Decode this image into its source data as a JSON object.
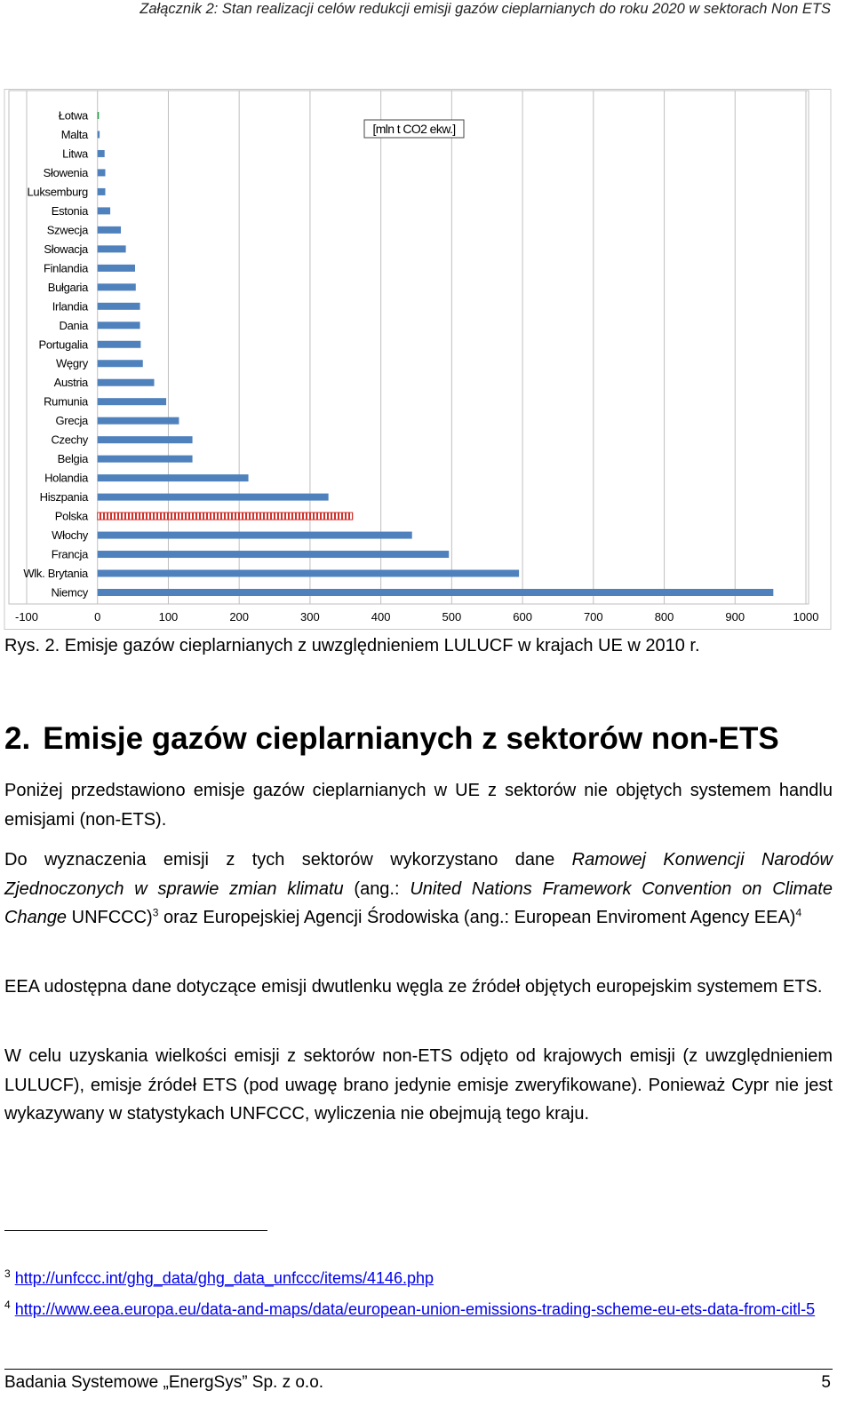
{
  "header": "Załącznik 2: Stan realizacji celów redukcji emisji gazów cieplarnianych do roku 2020 w sektorach Non ETS",
  "chart_data": {
    "type": "bar",
    "orientation": "horizontal",
    "annotation": "[mln t CO2 ekw.]",
    "categories": [
      "Łotwa",
      "Malta",
      "Litwa",
      "Słowenia",
      "Luksemburg",
      "Estonia",
      "Szwecja",
      "Słowacja",
      "Finlandia",
      "Bułgaria",
      "Irlandia",
      "Dania",
      "Portugalia",
      "Węgry",
      "Austria",
      "Rumunia",
      "Grecja",
      "Czechy",
      "Belgia",
      "Holandia",
      "Hiszpania",
      "Polska",
      "Włochy",
      "Francja",
      "Wlk. Brytania",
      "Niemcy"
    ],
    "values": [
      2,
      3,
      10,
      11,
      11,
      18,
      33,
      40,
      53,
      54,
      60,
      60,
      61,
      64,
      80,
      97,
      115,
      134,
      134,
      213,
      326,
      360,
      444,
      496,
      595,
      954
    ],
    "colors": [
      "#2e9b4b",
      "#4f81bd",
      "#4f81bd",
      "#4f81bd",
      "#4f81bd",
      "#4f81bd",
      "#4f81bd",
      "#4f81bd",
      "#4f81bd",
      "#4f81bd",
      "#4f81bd",
      "#4f81bd",
      "#4f81bd",
      "#4f81bd",
      "#4f81bd",
      "#4f81bd",
      "#4f81bd",
      "#4f81bd",
      "#4f81bd",
      "#4f81bd",
      "#4f81bd",
      "#d0302a",
      "#4f81bd",
      "#4f81bd",
      "#4f81bd",
      "#4f81bd"
    ],
    "styles": [
      "solid",
      "solid",
      "solid",
      "solid",
      "solid",
      "solid",
      "solid",
      "solid",
      "solid",
      "solid",
      "solid",
      "solid",
      "solid",
      "solid",
      "solid",
      "solid",
      "solid",
      "solid",
      "solid",
      "solid",
      "solid",
      "hatched",
      "solid",
      "solid",
      "solid",
      "solid"
    ],
    "xlim": [
      -100,
      1000
    ],
    "xticks": [
      -100,
      0,
      100,
      200,
      300,
      400,
      500,
      600,
      700,
      800,
      900,
      1000
    ],
    "grid": true
  },
  "caption": "Rys. 2. Emisje gazów cieplarnianych z uwzględnieniem LULUCF w krajach  UE w 2010 r.",
  "heading": {
    "number": "2.",
    "text": "Emisje gazów cieplarnianych z sektorów non-ETS"
  },
  "paragraphs": [
    [
      "Poniżej przedstawiono emisje gazów cieplarnianych w UE z sektorów nie objętych systemem handlu emisjami (non-ETS)."
    ],
    [
      "Do wyznaczenia emisji z tych sektorów wykorzystano dane ",
      "Ramowej Konwencji Narodów Zjednoczonych w sprawie zmian klimatu",
      " (ang.: ",
      "United Nations Framework Convention on Climate Change",
      " UNFCCC)",
      "3",
      " oraz Europejskiej Agencji Środowiska (ang.: European Enviroment Agency EEA)",
      "4"
    ],
    [
      "EEA udostępna dane dotyczące emisji dwutlenku węgla ze źródeł objętych europejskim systemem ETS."
    ],
    [
      "W celu uzyskania wielkości emisji z sektorów non-ETS odjęto od krajowych emisji (z uwzględnieniem LULUCF), emisje źródeł ETS (pod uwagę brano jedynie emisje zweryfikowane). Ponieważ Cypr nie jest wykazywany w statystykach UNFCCC, wyliczenia nie obejmują tego kraju."
    ]
  ],
  "footnotes": [
    {
      "number": "3",
      "url": "http://unfccc.int/ghg_data/ghg_data_unfccc/items/4146.php"
    },
    {
      "number": "4",
      "url": "http://www.eea.europa.eu/data-and-maps/data/european-union-emissions-trading-scheme-eu-ets-data-from-citl-5"
    }
  ],
  "footer": {
    "left": "Badania Systemowe „EnergSys” Sp. z o.o.",
    "page": "5"
  }
}
